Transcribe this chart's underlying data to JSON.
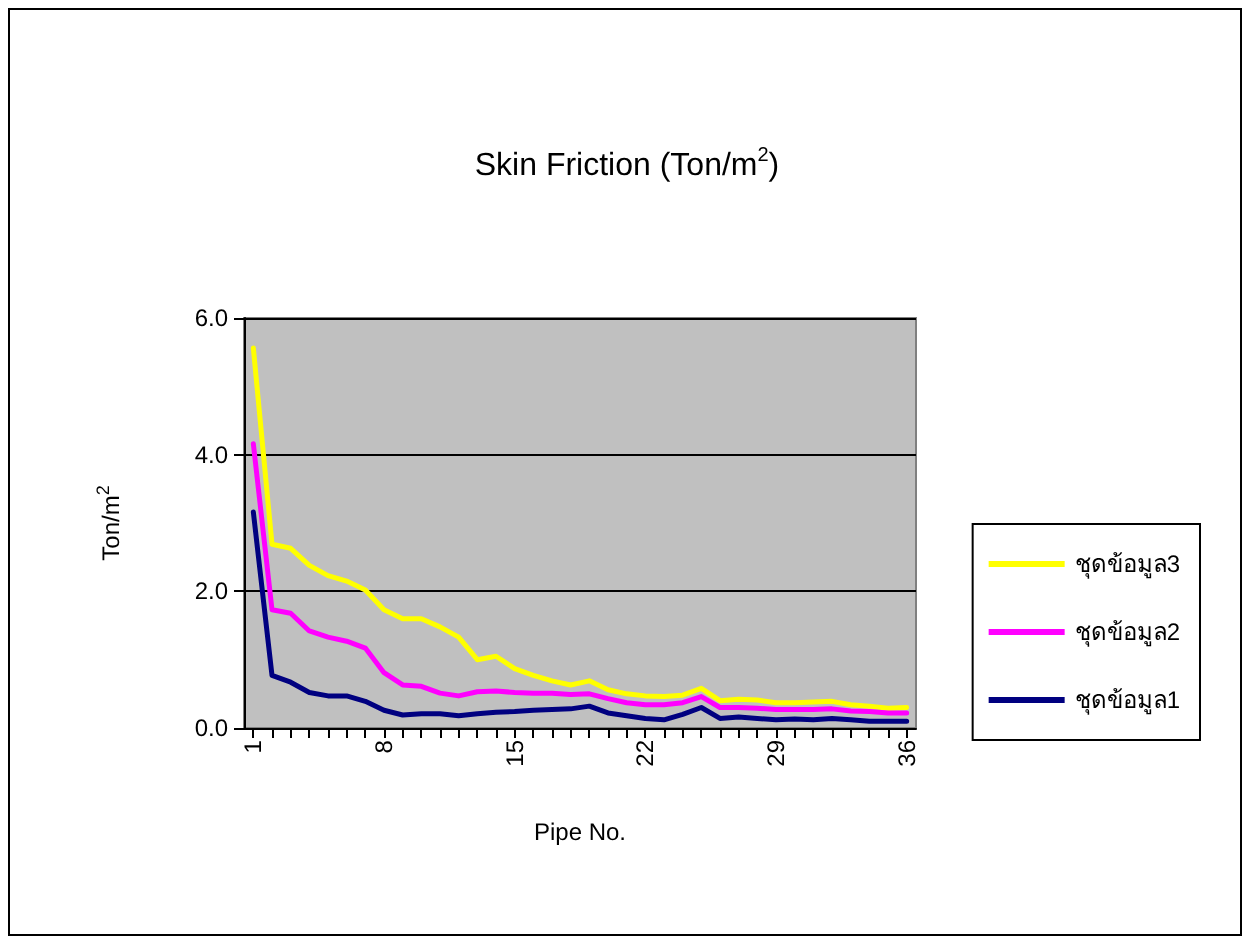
{
  "chart_data": {
    "type": "line",
    "title": "Skin Friction (Ton/m$^{2}$)",
    "xlabel": "Pipe No.",
    "ylabel": "Ton/m$^{2}$",
    "categories": [
      "1",
      null,
      null,
      null,
      null,
      null,
      null,
      "8",
      null,
      null,
      null,
      null,
      null,
      null,
      "15",
      null,
      null,
      null,
      null,
      null,
      null,
      "22",
      null,
      null,
      null,
      null,
      null,
      null,
      "29",
      null,
      null,
      null,
      null,
      null,
      null,
      "36"
    ],
    "series": [
      {
        "name": "ชุดข้อมูล3",
        "color": "#ffff00",
        "values": [
          5.56,
          2.69,
          2.63,
          2.38,
          2.23,
          2.15,
          2.02,
          1.73,
          1.6,
          1.6,
          1.48,
          1.33,
          1.0,
          1.05,
          0.87,
          0.77,
          0.69,
          0.63,
          0.69,
          0.56,
          0.5,
          0.47,
          0.46,
          0.48,
          0.58,
          0.4,
          0.42,
          0.41,
          0.37,
          0.37,
          0.38,
          0.39,
          0.34,
          0.32,
          0.29,
          0.3
        ]
      },
      {
        "name": "ชุดข้อมูล2",
        "color": "#ff00ff",
        "values": [
          4.16,
          1.73,
          1.68,
          1.42,
          1.33,
          1.27,
          1.17,
          0.81,
          0.63,
          0.61,
          0.51,
          0.47,
          0.53,
          0.54,
          0.52,
          0.51,
          0.51,
          0.49,
          0.5,
          0.43,
          0.37,
          0.34,
          0.34,
          0.37,
          0.46,
          0.3,
          0.3,
          0.29,
          0.27,
          0.27,
          0.27,
          0.28,
          0.25,
          0.24,
          0.22,
          0.22
        ]
      },
      {
        "name": "ชุดข้อมูล1",
        "color": "#000080",
        "values": [
          3.16,
          0.77,
          0.67,
          0.52,
          0.47,
          0.47,
          0.39,
          0.26,
          0.19,
          0.21,
          0.21,
          0.18,
          0.21,
          0.23,
          0.24,
          0.26,
          0.27,
          0.28,
          0.32,
          0.22,
          0.18,
          0.14,
          0.12,
          0.2,
          0.3,
          0.14,
          0.16,
          0.14,
          0.12,
          0.13,
          0.12,
          0.14,
          0.12,
          0.1,
          0.1,
          0.1
        ]
      }
    ],
    "ylim": [
      0,
      6
    ],
    "yticks": [
      {
        "value": 0,
        "label": "0.0"
      },
      {
        "value": 2,
        "label": "2.0"
      },
      {
        "value": 4,
        "label": "4.0"
      },
      {
        "value": 6,
        "label": "6.0"
      }
    ],
    "grid": "y",
    "legend": "right",
    "marker": "none",
    "line_style": "solid"
  }
}
